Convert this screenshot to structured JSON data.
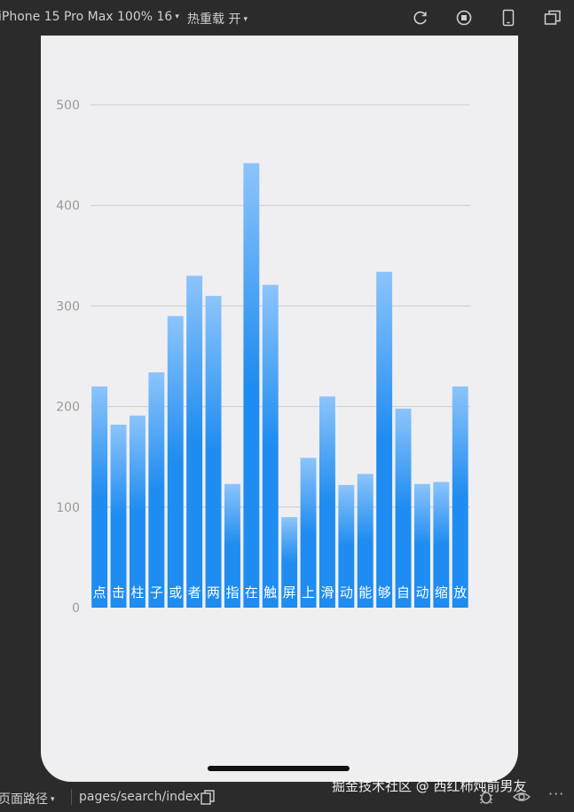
{
  "toolbar": {
    "device_label": "iPhone 15 Pro Max 100% 16",
    "hot_reload_label": "热重载 开",
    "icons": [
      "refresh-icon",
      "stop-icon",
      "phone-icon",
      "window-icon"
    ]
  },
  "statusbar": {
    "page_path_label": "页面路径",
    "page_path": "pages/search/index",
    "icons": [
      "copy-icon",
      "bug-icon",
      "eye-icon",
      "more-icon"
    ]
  },
  "watermark": "掘金技术社区 @ 西红柿炖前男友",
  "colors": {
    "bar_top": "#8cc4fb",
    "bar_mid": "#1e8cf0",
    "bar_bottom": "#1e8cf0",
    "grid": "#cccccc",
    "tick_label": "#999999",
    "bar_label": "#ffffff"
  },
  "chart_data": {
    "type": "bar",
    "categories": [
      "点",
      "击",
      "柱",
      "子",
      "或",
      "者",
      "两",
      "指",
      "在",
      "触",
      "屏",
      "上",
      "滑",
      "动",
      "能",
      "够",
      "自",
      "动",
      "缩",
      "放"
    ],
    "values": [
      220,
      182,
      191,
      234,
      290,
      330,
      310,
      123,
      442,
      321,
      90,
      149,
      210,
      122,
      133,
      334,
      198,
      123,
      125,
      220
    ],
    "ylim": [
      0,
      500
    ],
    "yticks": [
      "0",
      "100",
      "200",
      "300",
      "400",
      "500"
    ],
    "grid": true,
    "title": "",
    "xlabel": "",
    "ylabel": ""
  }
}
